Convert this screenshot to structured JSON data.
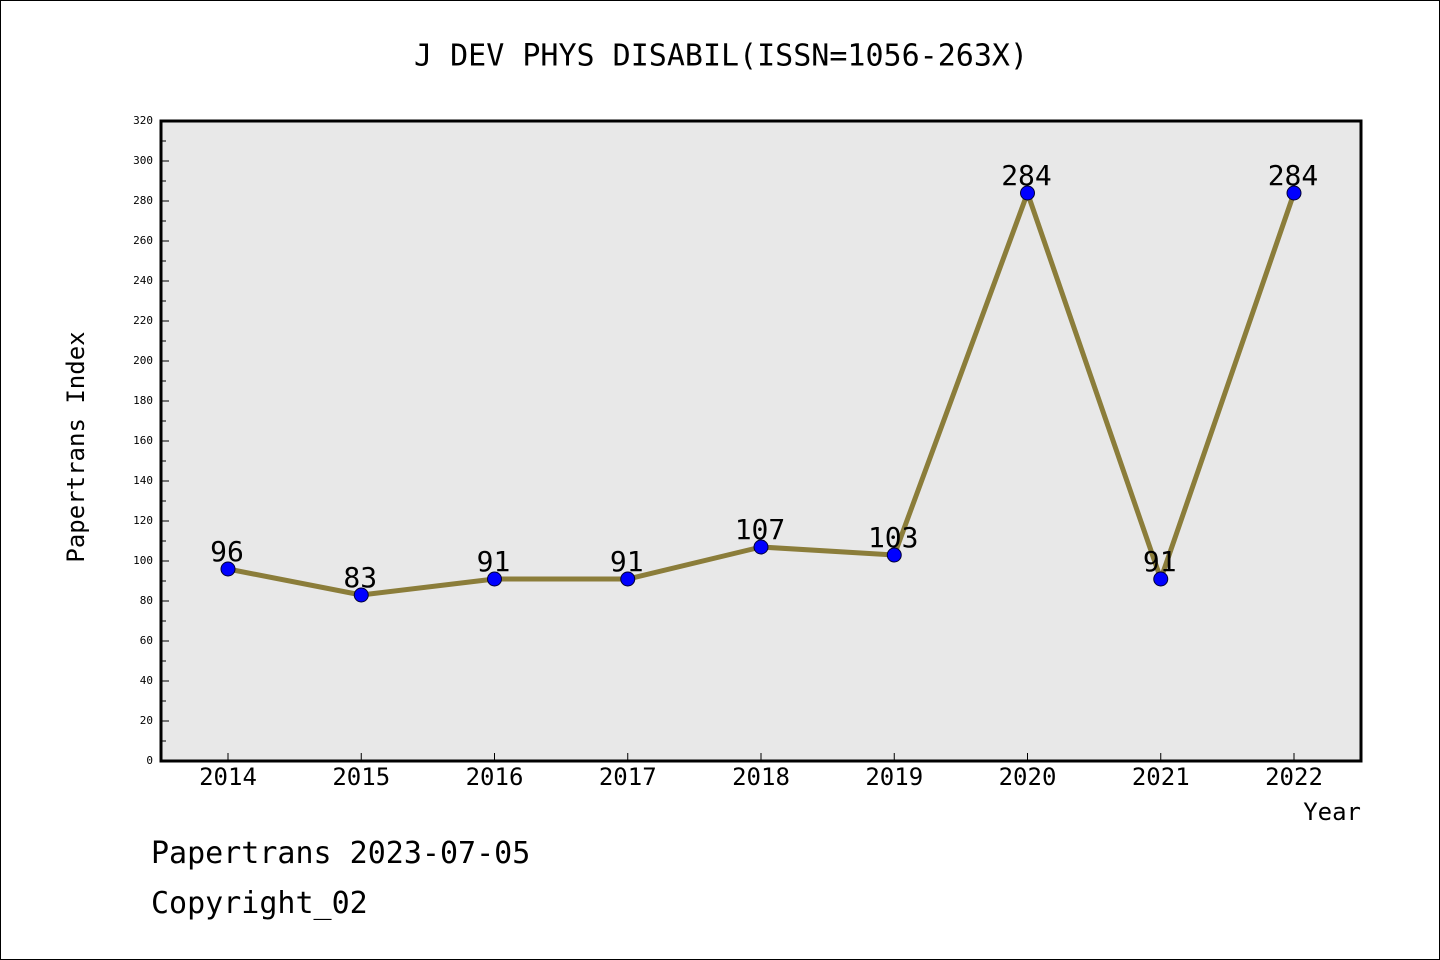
{
  "chart_data": {
    "type": "line",
    "title": "J DEV PHYS DISABIL(ISSN=1056-263X)",
    "xlabel": "Year",
    "ylabel": "Papertrans Index",
    "categories": [
      "2014",
      "2015",
      "2016",
      "2017",
      "2018",
      "2019",
      "2020",
      "2021",
      "2022"
    ],
    "series": [
      {
        "values": [
          96,
          83,
          91,
          91,
          107,
          103,
          284,
          91,
          284
        ]
      }
    ],
    "ylim": [
      0,
      320
    ],
    "yticks": [
      0,
      20,
      40,
      60,
      80,
      100,
      120,
      140,
      160,
      180,
      200,
      220,
      240,
      260,
      280,
      300,
      320
    ],
    "grid": false,
    "data_labels": true,
    "colors": {
      "line": "#8b7d3a",
      "marker": "#0000ff",
      "plot_background": "#e8e8e8"
    }
  },
  "footer": {
    "line1": "Papertrans 2023-07-05",
    "line2": "Copyright_02"
  }
}
